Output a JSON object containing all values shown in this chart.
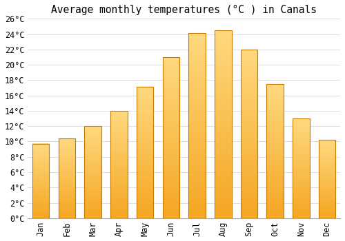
{
  "title": "Average monthly temperatures (°C ) in Canals",
  "months": [
    "Jan",
    "Feb",
    "Mar",
    "Apr",
    "May",
    "Jun",
    "Jul",
    "Aug",
    "Sep",
    "Oct",
    "Nov",
    "Dec"
  ],
  "values": [
    9.7,
    10.4,
    12.0,
    14.0,
    17.1,
    21.0,
    24.1,
    24.5,
    22.0,
    17.5,
    13.0,
    10.2
  ],
  "bar_color_bottom": "#F5A623",
  "bar_color_top": "#FFD97F",
  "bar_edge_color": "#C87A00",
  "background_color": "#ffffff",
  "grid_color": "#dddddd",
  "ylim": [
    0,
    26
  ],
  "ytick_step": 2,
  "title_fontsize": 10.5,
  "tick_fontsize": 8.5,
  "font_family": "monospace",
  "bar_width": 0.65,
  "figsize": [
    5.0,
    3.5
  ],
  "dpi": 100
}
